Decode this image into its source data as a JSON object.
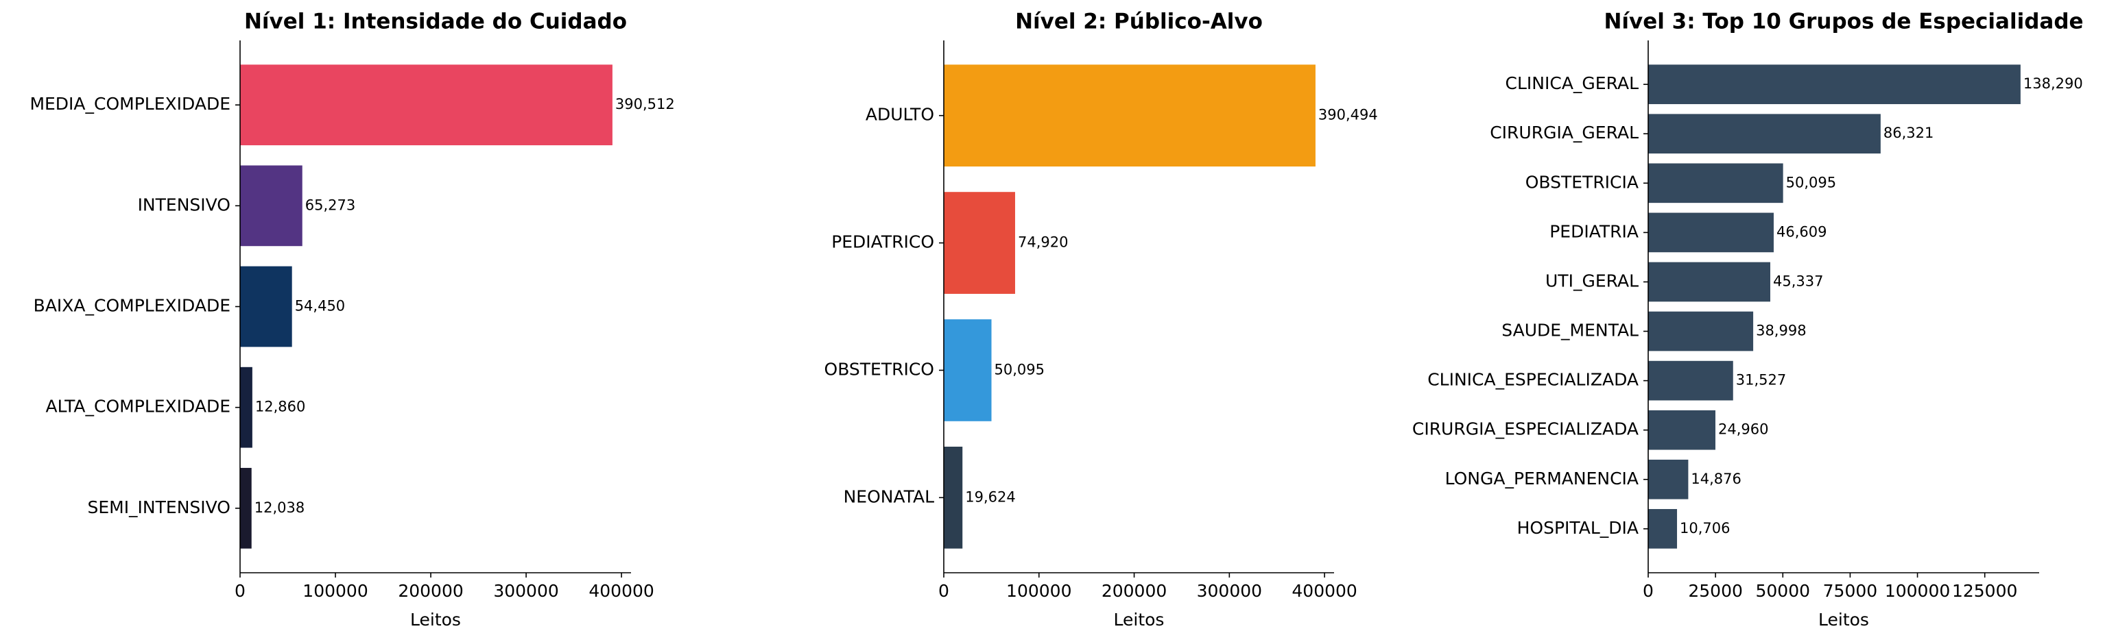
{
  "chart_data": [
    {
      "type": "barh",
      "title": "Nível 1: Intensidade do Cuidado",
      "x_label": "Leitos",
      "categories": [
        "MEDIA_COMPLEXIDADE",
        "INTENSIVO",
        "BAIXA_COMPLEXIDADE",
        "ALTA_COMPLEXIDADE",
        "SEMI_INTENSIVO"
      ],
      "values": [
        390512,
        65273,
        54450,
        12860,
        12038
      ],
      "value_labels": [
        "390,512",
        "65,273",
        "54,450",
        "12,860",
        "12,038"
      ],
      "colors": [
        "#e94560",
        "#533483",
        "#0f3460",
        "#16213e",
        "#1a1a2e"
      ],
      "xlim": [
        0,
        410000
      ],
      "xticks": [
        0,
        100000,
        200000,
        300000,
        400000
      ]
    },
    {
      "type": "barh",
      "title": "Nível 2: Público-Alvo",
      "x_label": "Leitos",
      "categories": [
        "ADULTO",
        "PEDIATRICO",
        "OBSTETRICO",
        "NEONATAL"
      ],
      "values": [
        390494,
        74920,
        50095,
        19624
      ],
      "value_labels": [
        "390,494",
        "74,920",
        "50,095",
        "19,624"
      ],
      "colors": [
        "#f39c12",
        "#e74c3c",
        "#3498db",
        "#2c3e50"
      ],
      "xlim": [
        0,
        410000
      ],
      "xticks": [
        0,
        100000,
        200000,
        300000,
        400000
      ]
    },
    {
      "type": "barh",
      "title": "Nível 3: Top 10 Grupos de Especialidade",
      "x_label": "Leitos",
      "categories": [
        "CLINICA_GERAL",
        "CIRURGIA_GERAL",
        "OBSTETRICIA",
        "PEDIATRIA",
        "UTI_GERAL",
        "SAUDE_MENTAL",
        "CLINICA_ESPECIALIZADA",
        "CIRURGIA_ESPECIALIZADA",
        "LONGA_PERMANENCIA",
        "HOSPITAL_DIA"
      ],
      "values": [
        138290,
        86321,
        50095,
        46609,
        45337,
        38998,
        31527,
        24960,
        14876,
        10706
      ],
      "value_labels": [
        "138,290",
        "86,321",
        "50,095",
        "46,609",
        "45,337",
        "38,998",
        "31,527",
        "24,960",
        "14,876",
        "10,706"
      ],
      "colors": [
        "#34495e",
        "#34495e",
        "#34495e",
        "#34495e",
        "#34495e",
        "#34495e",
        "#34495e",
        "#34495e",
        "#34495e",
        "#34495e"
      ],
      "xlim": [
        0,
        145200
      ],
      "xticks": [
        0,
        25000,
        50000,
        75000,
        100000,
        125000
      ]
    }
  ]
}
